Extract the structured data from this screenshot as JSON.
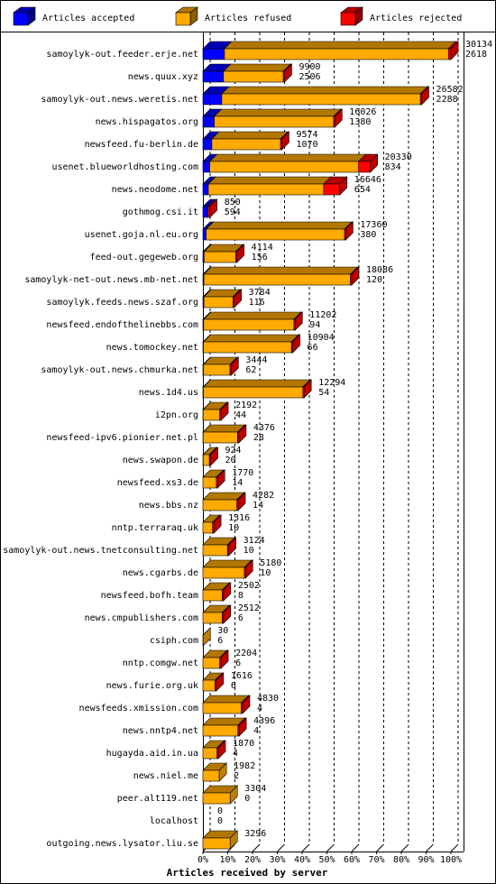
{
  "chart_data": {
    "type": "bar3d",
    "xlabel": "Articles received by server",
    "categories": [
      "samoylyk-out.feeder.erje.net",
      "news.quux.xyz",
      "samoylyk-out.news.weretis.net",
      "news.hispagatos.org",
      "newsfeed.fu-berlin.de",
      "usenet.blueworldhosting.com",
      "news.neodome.net",
      "gothmog.csi.it",
      "usenet.goja.nl.eu.org",
      "feed-out.gegeweb.org",
      "samoylyk-net-out.news.mb-net.net",
      "samoylyk.feeds.news.szaf.org",
      "newsfeed.endofthelinebbs.com",
      "news.tomockey.net",
      "samoylyk-out.news.chmurka.net",
      "news.1d4.us",
      "i2pn.org",
      "newsfeed-ipv6.pionier.net.pl",
      "news.swapon.de",
      "newsfeed.xs3.de",
      "news.bbs.nz",
      "nntp.terraraq.uk",
      "samoylyk-out.news.tnetconsulting.net",
      "news.cgarbs.de",
      "newsfeed.bofh.team",
      "news.cmpublishers.com",
      "csiph.com",
      "nntp.comgw.net",
      "news.furie.org.uk",
      "newsfeeds.xmission.com",
      "news.nntp4.net",
      "hugayda.aid.in.ua",
      "news.niel.me",
      "peer.alt119.net",
      "localhost",
      "outgoing.news.lysator.liu.se"
    ],
    "series": [
      {
        "name": "Articles accepted",
        "color": "#0000ff",
        "values": [
          8.7,
          8.3,
          7.6,
          4.6,
          3.6,
          2.8,
          2.2,
          2.0,
          1.3,
          0.5,
          0.4,
          0.4,
          0.3,
          0.2,
          0.2,
          0.2,
          0.1,
          0.1,
          0.1,
          0,
          0,
          0,
          0,
          0,
          0,
          0,
          0,
          0,
          0,
          0,
          0,
          0,
          0,
          0,
          0,
          0
        ]
      },
      {
        "name": "Articles refused",
        "color": "#ffaa00",
        "values": [
          90.3,
          24.1,
          80.1,
          48.1,
          27.7,
          60.0,
          46.5,
          0,
          55.8,
          12.7,
          59.1,
          11.7,
          36.4,
          35.5,
          10.7,
          40.1,
          6.7,
          13.9,
          2.5,
          5.4,
          13.7,
          3.9,
          9.9,
          16.7,
          7.8,
          7.8,
          0.1,
          6.8,
          4.9,
          15.5,
          14.1,
          5.7,
          6.6,
          11.0,
          0,
          11.0
        ]
      },
      {
        "name": "Articles rejected",
        "color": "#ff0000",
        "values": [
          1.0,
          0.5,
          0.5,
          0.5,
          0.5,
          4.7,
          6.5,
          0.8,
          0.5,
          0.5,
          0.5,
          0.5,
          0.5,
          0.5,
          0.5,
          0.5,
          0.5,
          0.5,
          0.5,
          0.5,
          0.5,
          0.5,
          0.5,
          0.5,
          0.5,
          0.5,
          0,
          0.5,
          0.5,
          0.5,
          0.5,
          0.5,
          0,
          0,
          0,
          0
        ]
      }
    ],
    "offered": [
      30134,
      9900,
      26582,
      16026,
      9574,
      20330,
      16646,
      850,
      17360,
      4114,
      18086,
      3784,
      11202,
      10904,
      3444,
      12294,
      2192,
      4376,
      924,
      1770,
      4282,
      1316,
      3124,
      5180,
      2502,
      2512,
      30,
      2204,
      1616,
      4830,
      4396,
      1870,
      1982,
      3304,
      0,
      3296
    ],
    "accepted_counts": [
      2618,
      2506,
      2288,
      1380,
      1070,
      834,
      654,
      594,
      380,
      156,
      120,
      116,
      94,
      66,
      62,
      54,
      44,
      28,
      20,
      14,
      14,
      10,
      10,
      10,
      8,
      6,
      6,
      6,
      6,
      4,
      4,
      4,
      2,
      0,
      0,
      null
    ],
    "xlim": [
      0,
      100
    ],
    "xticks": [
      {
        "value": 0,
        "label": "0%"
      },
      {
        "value": 10,
        "label": "10%"
      },
      {
        "value": 20,
        "label": "20%"
      },
      {
        "value": 30,
        "label": "30%"
      },
      {
        "value": 40,
        "label": "40%"
      },
      {
        "value": 50,
        "label": "50%"
      },
      {
        "value": 60,
        "label": "60%"
      },
      {
        "value": 70,
        "label": "70%"
      },
      {
        "value": 80,
        "label": "80%"
      },
      {
        "value": 90,
        "label": "90%"
      },
      {
        "value": 100,
        "label": "100%"
      }
    ],
    "grid": true
  }
}
